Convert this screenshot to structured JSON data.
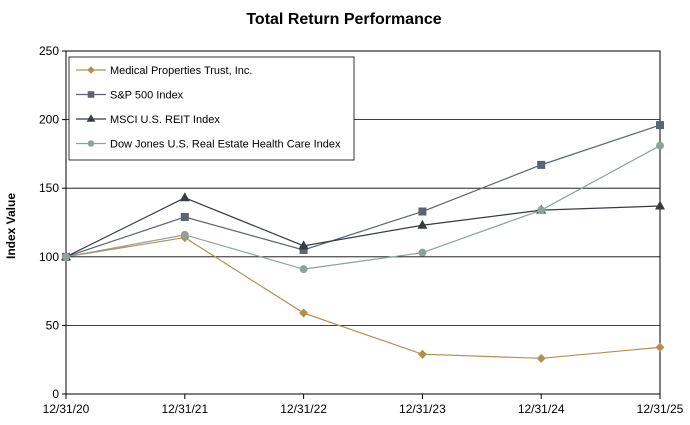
{
  "chart_data": {
    "type": "line",
    "title": "Total Return Performance",
    "xlabel": "",
    "ylabel": "Index Value",
    "categories": [
      "12/31/20",
      "12/31/21",
      "12/31/22",
      "12/31/23",
      "12/31/24",
      "12/31/25"
    ],
    "ylim": [
      0,
      250
    ],
    "yticks": [
      0,
      50,
      100,
      150,
      200,
      250
    ],
    "grid": "horizontal",
    "legend_position": "top-left",
    "series": [
      {
        "name": "Medical Properties Trust, Inc.",
        "color": "#B58E4E",
        "marker": "diamond",
        "values": [
          100,
          114,
          59,
          29,
          26,
          34
        ]
      },
      {
        "name": "S&P 500 Index",
        "color": "#5B6470",
        "marker": "square",
        "values": [
          100,
          129,
          105,
          133,
          167,
          196
        ]
      },
      {
        "name": "MSCI U.S. REIT Index",
        "color": "#363C42",
        "marker": "triangle",
        "values": [
          100,
          143,
          108,
          123,
          134,
          137
        ]
      },
      {
        "name": "Dow Jones U.S. Real Estate Health Care Index",
        "color": "#8FA39A",
        "marker": "circle",
        "values": [
          100,
          116,
          91,
          103,
          134,
          181
        ]
      }
    ]
  }
}
